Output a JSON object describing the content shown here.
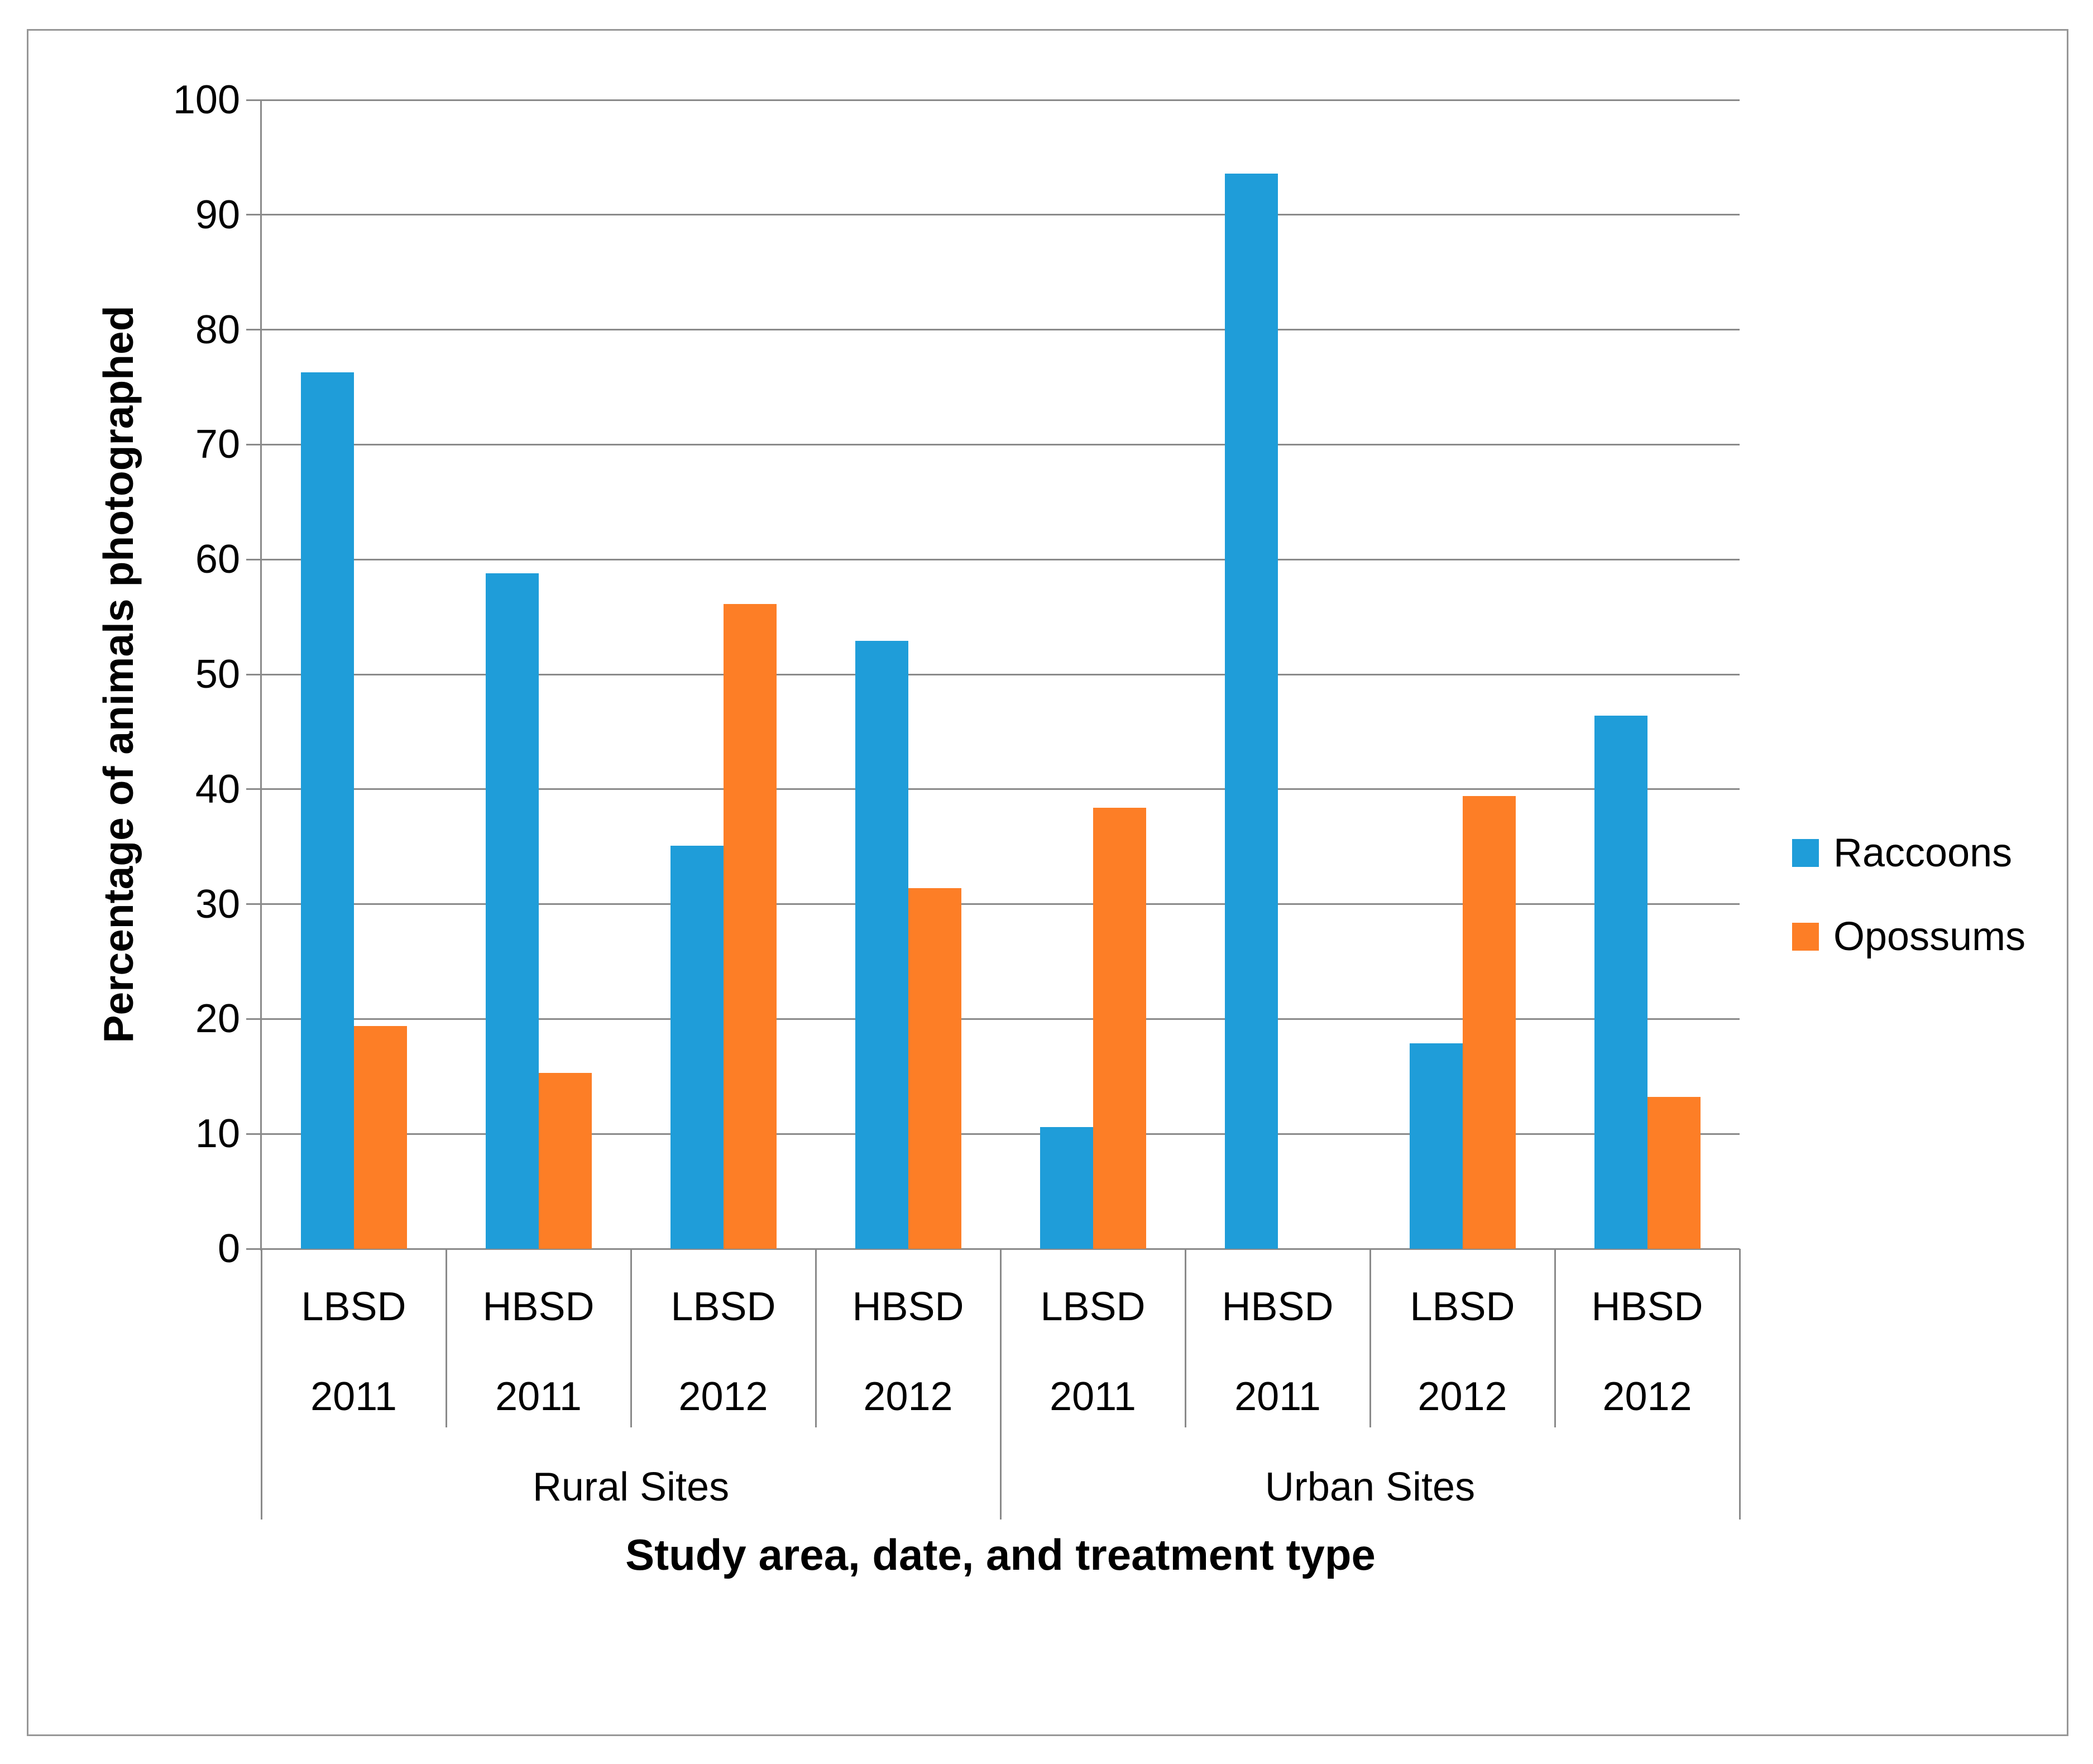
{
  "chart_data": {
    "type": "bar",
    "title": "",
    "xlabel": "Study area, date, and treatment type",
    "ylabel": "Percentage of animals photographed",
    "ylim": [
      0,
      100
    ],
    "yticks": [
      0,
      10,
      20,
      30,
      40,
      50,
      60,
      70,
      80,
      90,
      100
    ],
    "grid": "horizontal",
    "legend_position": "right",
    "categories": [
      {
        "treatment": "LBSD",
        "year": "2011"
      },
      {
        "treatment": "HBSD",
        "year": "2011"
      },
      {
        "treatment": "LBSD",
        "year": "2012"
      },
      {
        "treatment": "HBSD",
        "year": "2012"
      },
      {
        "treatment": "LBSD",
        "year": "2011"
      },
      {
        "treatment": "HBSD",
        "year": "2011"
      },
      {
        "treatment": "LBSD",
        "year": "2012"
      },
      {
        "treatment": "HBSD",
        "year": "2012"
      }
    ],
    "sections": [
      {
        "label": "Rural Sites",
        "span": 4
      },
      {
        "label": "Urban Sites",
        "span": 4
      }
    ],
    "series": [
      {
        "name": "Raccoons",
        "color": "#1F9DD9",
        "values": [
          76.3,
          58.8,
          35.1,
          52.9,
          10.6,
          93.6,
          17.9,
          46.4
        ]
      },
      {
        "name": "Opossums",
        "color": "#FD7E26",
        "values": [
          19.4,
          15.3,
          56.1,
          31.4,
          38.4,
          0,
          39.4,
          13.2
        ]
      }
    ],
    "colors": {
      "gridline": "#8A8A8A",
      "axis": "#8A8A8A",
      "text": "#000000",
      "figure_border": "#979797",
      "background": "#FFFFFF"
    }
  }
}
